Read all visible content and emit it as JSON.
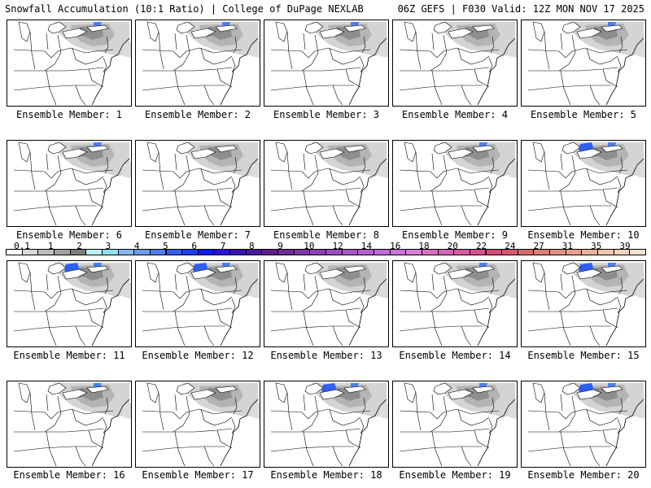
{
  "header": {
    "left": "Snowfall Accumulation (10:1 Ratio) | College of DuPage NEXLAB",
    "right": "06Z GEFS | F030 Valid: 12Z MON NOV 17 2025"
  },
  "members": [
    {
      "label": "Ensemble Member: 1",
      "intensity": 0.8
    },
    {
      "label": "Ensemble Member: 2",
      "intensity": 0.6
    },
    {
      "label": "Ensemble Member: 3",
      "intensity": 0.7
    },
    {
      "label": "Ensemble Member: 4",
      "intensity": 0.5
    },
    {
      "label": "Ensemble Member: 5",
      "intensity": 0.6
    },
    {
      "label": "Ensemble Member: 6",
      "intensity": 0.7
    },
    {
      "label": "Ensemble Member: 7",
      "intensity": 0.4
    },
    {
      "label": "Ensemble Member: 8",
      "intensity": 0.5
    },
    {
      "label": "Ensemble Member: 9",
      "intensity": 0.8
    },
    {
      "label": "Ensemble Member: 10",
      "intensity": 1.0
    },
    {
      "label": "Ensemble Member: 11",
      "intensity": 1.0
    },
    {
      "label": "Ensemble Member: 12",
      "intensity": 0.9
    },
    {
      "label": "Ensemble Member: 13",
      "intensity": 0.5
    },
    {
      "label": "Ensemble Member: 14",
      "intensity": 0.6
    },
    {
      "label": "Ensemble Member: 15",
      "intensity": 0.9
    },
    {
      "label": "Ensemble Member: 16",
      "intensity": 0.8
    },
    {
      "label": "Ensemble Member: 17",
      "intensity": 0.3
    },
    {
      "label": "Ensemble Member: 18",
      "intensity": 0.9
    },
    {
      "label": "Ensemble Member: 19",
      "intensity": 0.7
    },
    {
      "label": "Ensemble Member: 20",
      "intensity": 0.9
    }
  ],
  "colorbar": {
    "labels": [
      "0.1",
      "1",
      "2",
      "3",
      "4",
      "5",
      "6",
      "7",
      "8",
      "9",
      "10",
      "12",
      "14",
      "16",
      "18",
      "20",
      "22",
      "24",
      "27",
      "31",
      "35",
      "39"
    ],
    "colors": [
      "#ffffff",
      "#d9d9d9",
      "#bdbdbd",
      "#a0a0a0",
      "#7e7e7e",
      "#b9f1f4",
      "#8fe0f0",
      "#86b8ef",
      "#6b9cf0",
      "#4d7ef0",
      "#2f5ff0",
      "#1b3ff0",
      "#0b1ef2",
      "#2a12d6",
      "#3a12b8",
      "#4d1aa0",
      "#5d1e8f",
      "#6e2a9a",
      "#7f35a8",
      "#8d3fb5",
      "#9a4cc0",
      "#a857c8",
      "#b560cf",
      "#c06ad5",
      "#cc73d9",
      "#d77cd8",
      "#d86fc4",
      "#d865b2",
      "#d85aa0",
      "#d9508e",
      "#d8497d",
      "#d8576f",
      "#d96a6a",
      "#dc7c74",
      "#e28e80",
      "#e7a08d",
      "#eab29c",
      "#efc3ad",
      "#f2d3bf",
      "#f6e1d0"
    ]
  }
}
